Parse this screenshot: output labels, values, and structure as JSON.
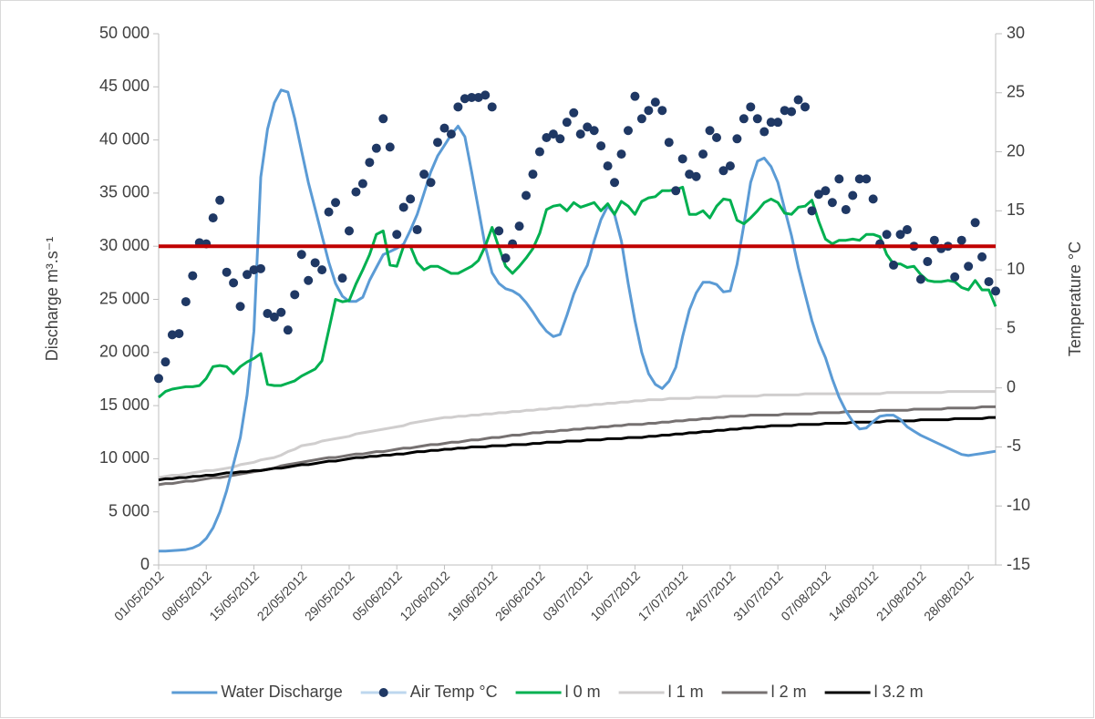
{
  "chart_data": {
    "type": "line",
    "y_label": "Discharge m³.s⁻¹",
    "y2_label": "Temperature °C",
    "categories": [
      "01/05/2012",
      null,
      null,
      null,
      null,
      null,
      null,
      "08/05/2012",
      null,
      null,
      null,
      null,
      null,
      null,
      "15/05/2012",
      null,
      null,
      null,
      null,
      null,
      null,
      "22/05/2012",
      null,
      null,
      null,
      null,
      null,
      null,
      "29/05/2012",
      null,
      null,
      null,
      null,
      null,
      null,
      "05/06/2012",
      null,
      null,
      null,
      null,
      null,
      null,
      "12/06/2012",
      null,
      null,
      null,
      null,
      null,
      null,
      "19/06/2012",
      null,
      null,
      null,
      null,
      null,
      null,
      "26/06/2012",
      null,
      null,
      null,
      null,
      null,
      null,
      "03/07/2012",
      null,
      null,
      null,
      null,
      null,
      null,
      "10/07/2012",
      null,
      null,
      null,
      null,
      null,
      null,
      "17/07/2012",
      null,
      null,
      null,
      null,
      null,
      null,
      "24/07/2012",
      null,
      null,
      null,
      null,
      null,
      null,
      "31/07/2012",
      null,
      null,
      null,
      null,
      null,
      null,
      "07/08/2012",
      null,
      null,
      null,
      null,
      null,
      null,
      "14/08/2012",
      null,
      null,
      null,
      null,
      null,
      null,
      "21/08/2012",
      null,
      null,
      null,
      null,
      null,
      null,
      "28/08/2012",
      null,
      null,
      null,
      null
    ],
    "ylim": [
      0,
      50000
    ],
    "yticks": [
      0,
      {
        "value": 5000,
        "label": "5 000"
      },
      {
        "value": 10000,
        "label": "10 000"
      },
      {
        "value": 15000,
        "label": "15 000"
      },
      {
        "value": 20000,
        "label": "20 000"
      },
      {
        "value": 25000,
        "label": "25 000"
      },
      {
        "value": 30000,
        "label": "30 000"
      },
      {
        "value": 35000,
        "label": "35 000"
      },
      {
        "value": 40000,
        "label": "40 000"
      },
      {
        "value": 45000,
        "label": "45 000"
      },
      {
        "value": 50000,
        "label": "50 000"
      }
    ],
    "y2lim": [
      -15,
      30
    ],
    "y2ticks": [
      -15,
      -10,
      -5,
      0,
      5,
      10,
      15,
      20,
      25,
      30
    ],
    "reference_line": {
      "value": 30000,
      "color": "#c00000"
    },
    "series": [
      {
        "name": "Water Discharge",
        "color": "#5b9bd5",
        "style": "line",
        "values": [
          1300,
          1300,
          1350,
          1400,
          1450,
          1600,
          1900,
          2500,
          3500,
          5000,
          7000,
          9500,
          12000,
          16000,
          22000,
          36500,
          41000,
          43500,
          44700,
          44500,
          42000,
          39000,
          36000,
          33500,
          31000,
          28500,
          26500,
          25300,
          24800,
          24800,
          25200,
          26800,
          28000,
          29200,
          29500,
          29800,
          30200,
          31500,
          33000,
          35000,
          37000,
          38500,
          39500,
          40500,
          41300,
          40300,
          37000,
          33500,
          30000,
          27500,
          26500,
          26000,
          25800,
          25400,
          24700,
          23800,
          22800,
          22000,
          21500,
          21700,
          23500,
          25500,
          27000,
          28200,
          30500,
          32500,
          33800,
          33000,
          30500,
          26500,
          23000,
          20000,
          18000,
          17000,
          16600,
          17300,
          18600,
          21500,
          24000,
          25600,
          26600,
          26600,
          26400,
          25700,
          25800,
          28300,
          32000,
          36000,
          38000,
          38300,
          37500,
          36000,
          33500,
          31000,
          28000,
          25500,
          23000,
          21000,
          19500,
          17500,
          15800,
          14500,
          13500,
          12800,
          12900,
          13500,
          14000,
          14100,
          14100,
          13700,
          13000,
          12600,
          12200,
          11900,
          11600,
          11300,
          11000,
          10700,
          10400,
          10300,
          10400,
          10500,
          10600,
          10700
        ]
      },
      {
        "name": "Air Temp °C",
        "color": "#1f3864",
        "legend_line_color": "#bdd7ee",
        "style": "markers",
        "axis": "y2",
        "values": [
          0.8,
          2.2,
          4.5,
          4.6,
          7.3,
          9.5,
          12.3,
          12.2,
          14.4,
          15.9,
          9.8,
          8.9,
          6.9,
          9.6,
          10.0,
          10.1,
          6.3,
          6.0,
          6.4,
          4.9,
          7.9,
          11.3,
          9.1,
          10.6,
          10.0,
          14.9,
          15.7,
          9.3,
          13.3,
          16.6,
          17.3,
          19.1,
          20.3,
          22.8,
          20.4,
          13.0,
          15.3,
          16.0,
          13.4,
          18.1,
          17.4,
          20.8,
          22.0,
          21.5,
          23.8,
          24.5,
          24.6,
          24.6,
          24.8,
          23.8,
          13.3,
          11.0,
          12.2,
          13.7,
          16.3,
          18.1,
          20.0,
          21.2,
          21.5,
          21.1,
          22.5,
          23.3,
          21.5,
          22.1,
          21.8,
          20.5,
          18.8,
          17.4,
          19.8,
          21.8,
          24.7,
          22.8,
          23.5,
          24.2,
          23.5,
          20.8,
          16.7,
          19.4,
          18.1,
          17.9,
          19.8,
          21.8,
          21.2,
          18.4,
          18.8,
          21.1,
          22.8,
          23.8,
          22.8,
          21.7,
          22.5,
          22.5,
          23.5,
          23.4,
          24.4,
          23.8,
          15.0,
          16.4,
          16.7,
          15.7,
          17.7,
          15.1,
          16.3,
          17.7,
          17.7,
          16.0,
          12.2,
          13.0,
          10.4,
          13.0,
          13.4,
          12.0,
          9.2,
          10.7,
          12.5,
          11.8,
          12.0,
          9.4,
          12.5,
          10.3,
          14.0,
          11.1,
          9.0,
          8.2
        ]
      },
      {
        "name": "l 0 m",
        "color": "#00b050",
        "style": "line",
        "axis": "y2",
        "values": [
          -0.8,
          -0.3,
          -0.1,
          0,
          0.1,
          0.1,
          0.2,
          0.8,
          1.8,
          1.9,
          1.8,
          1.2,
          1.8,
          2.2,
          2.5,
          2.9,
          0.3,
          0.2,
          0.2,
          0.4,
          0.6,
          1.0,
          1.3,
          1.6,
          2.3,
          4.9,
          7.5,
          7.3,
          7.4,
          8.8,
          10.0,
          11.3,
          13.0,
          13.3,
          10.4,
          10.3,
          12.0,
          12.0,
          10.6,
          10.0,
          10.3,
          10.3,
          10.0,
          9.7,
          9.7,
          10.0,
          10.3,
          10.8,
          12.0,
          13.6,
          11.9,
          10.3,
          9.7,
          10.3,
          11.0,
          11.8,
          13.1,
          15.1,
          15.4,
          15.5,
          15.0,
          15.7,
          15.3,
          15.5,
          15.7,
          15.0,
          15.6,
          14.7,
          15.8,
          15.4,
          14.7,
          15.8,
          16.1,
          16.2,
          16.7,
          16.7,
          16.8,
          17.0,
          14.7,
          14.7,
          15.0,
          14.4,
          15.4,
          16.0,
          15.9,
          14.2,
          13.9,
          14.4,
          15.0,
          15.7,
          16.0,
          15.7,
          14.8,
          14.7,
          15.3,
          15.4,
          15.9,
          14.1,
          12.6,
          12.2,
          12.5,
          12.5,
          12.6,
          12.5,
          13.0,
          13.0,
          12.8,
          11.3,
          10.5,
          10.5,
          10.2,
          10.3,
          9.6,
          9.1,
          9.0,
          9.0,
          9.1,
          9.0,
          8.5,
          8.3,
          9.1,
          8.3,
          8.3,
          6.9
        ]
      },
      {
        "name": "l 1 m",
        "color": "#d0cece",
        "style": "line",
        "axis": "y2",
        "values": [
          -7.6,
          -7.5,
          -7.4,
          -7.4,
          -7.3,
          -7.2,
          -7.1,
          -7.0,
          -7.0,
          -6.9,
          -6.8,
          -6.7,
          -6.5,
          -6.4,
          -6.3,
          -6.1,
          -6.0,
          -5.9,
          -5.7,
          -5.4,
          -5.2,
          -4.9,
          -4.8,
          -4.7,
          -4.5,
          -4.4,
          -4.3,
          -4.2,
          -4.1,
          -3.9,
          -3.8,
          -3.7,
          -3.6,
          -3.5,
          -3.4,
          -3.3,
          -3.2,
          -3.0,
          -2.9,
          -2.8,
          -2.7,
          -2.6,
          -2.5,
          -2.5,
          -2.4,
          -2.4,
          -2.3,
          -2.3,
          -2.2,
          -2.2,
          -2.1,
          -2.1,
          -2.0,
          -2.0,
          -1.9,
          -1.9,
          -1.8,
          -1.8,
          -1.7,
          -1.7,
          -1.6,
          -1.6,
          -1.5,
          -1.5,
          -1.4,
          -1.4,
          -1.3,
          -1.3,
          -1.2,
          -1.2,
          -1.1,
          -1.1,
          -1.0,
          -1.0,
          -1.0,
          -0.9,
          -0.9,
          -0.9,
          -0.9,
          -0.8,
          -0.8,
          -0.8,
          -0.8,
          -0.7,
          -0.7,
          -0.7,
          -0.7,
          -0.7,
          -0.7,
          -0.6,
          -0.6,
          -0.6,
          -0.6,
          -0.6,
          -0.6,
          -0.5,
          -0.5,
          -0.5,
          -0.5,
          -0.5,
          -0.5,
          -0.5,
          -0.5,
          -0.5,
          -0.5,
          -0.5,
          -0.5,
          -0.4,
          -0.4,
          -0.4,
          -0.4,
          -0.4,
          -0.4,
          -0.4,
          -0.4,
          -0.4,
          -0.3,
          -0.3,
          -0.3,
          -0.3,
          -0.3,
          -0.3,
          -0.3,
          -0.3
        ]
      },
      {
        "name": "l 2 m",
        "color": "#767171",
        "style": "line",
        "axis": "y2",
        "values": [
          -8.2,
          -8.1,
          -8.1,
          -8.0,
          -7.9,
          -7.9,
          -7.8,
          -7.7,
          -7.6,
          -7.6,
          -7.5,
          -7.4,
          -7.3,
          -7.2,
          -7.1,
          -7.0,
          -6.9,
          -6.8,
          -6.6,
          -6.5,
          -6.4,
          -6.3,
          -6.2,
          -6.1,
          -6.0,
          -5.9,
          -5.9,
          -5.8,
          -5.7,
          -5.6,
          -5.6,
          -5.5,
          -5.4,
          -5.4,
          -5.3,
          -5.2,
          -5.1,
          -5.1,
          -5.0,
          -4.9,
          -4.8,
          -4.8,
          -4.7,
          -4.6,
          -4.6,
          -4.5,
          -4.4,
          -4.4,
          -4.3,
          -4.2,
          -4.2,
          -4.1,
          -4.0,
          -4.0,
          -3.9,
          -3.8,
          -3.8,
          -3.7,
          -3.7,
          -3.6,
          -3.6,
          -3.5,
          -3.5,
          -3.4,
          -3.4,
          -3.3,
          -3.3,
          -3.2,
          -3.2,
          -3.1,
          -3.1,
          -3.1,
          -3.0,
          -3.0,
          -2.9,
          -2.9,
          -2.8,
          -2.8,
          -2.7,
          -2.7,
          -2.6,
          -2.6,
          -2.5,
          -2.5,
          -2.4,
          -2.4,
          -2.4,
          -2.3,
          -2.3,
          -2.3,
          -2.3,
          -2.3,
          -2.2,
          -2.2,
          -2.2,
          -2.2,
          -2.2,
          -2.1,
          -2.1,
          -2.1,
          -2.1,
          -2.0,
          -2.0,
          -2.0,
          -2.0,
          -2.0,
          -1.9,
          -1.9,
          -1.9,
          -1.9,
          -1.9,
          -1.8,
          -1.8,
          -1.8,
          -1.8,
          -1.8,
          -1.7,
          -1.7,
          -1.7,
          -1.7,
          -1.7,
          -1.6,
          -1.6,
          -1.6
        ]
      },
      {
        "name": "l 3.2 m",
        "color": "#000000",
        "style": "line",
        "axis": "y2",
        "values": [
          -7.8,
          -7.7,
          -7.7,
          -7.6,
          -7.6,
          -7.5,
          -7.5,
          -7.4,
          -7.4,
          -7.3,
          -7.2,
          -7.2,
          -7.1,
          -7.1,
          -7.0,
          -7.0,
          -6.9,
          -6.8,
          -6.8,
          -6.7,
          -6.6,
          -6.5,
          -6.5,
          -6.4,
          -6.3,
          -6.2,
          -6.2,
          -6.1,
          -6.0,
          -5.9,
          -5.9,
          -5.8,
          -5.8,
          -5.7,
          -5.7,
          -5.6,
          -5.6,
          -5.5,
          -5.4,
          -5.4,
          -5.3,
          -5.3,
          -5.2,
          -5.2,
          -5.1,
          -5.1,
          -5.0,
          -5.0,
          -5.0,
          -4.9,
          -4.9,
          -4.9,
          -4.8,
          -4.8,
          -4.8,
          -4.7,
          -4.7,
          -4.6,
          -4.6,
          -4.6,
          -4.5,
          -4.5,
          -4.5,
          -4.4,
          -4.4,
          -4.4,
          -4.3,
          -4.3,
          -4.3,
          -4.2,
          -4.2,
          -4.2,
          -4.1,
          -4.1,
          -4.0,
          -4.0,
          -3.9,
          -3.9,
          -3.8,
          -3.8,
          -3.7,
          -3.7,
          -3.6,
          -3.6,
          -3.5,
          -3.5,
          -3.4,
          -3.4,
          -3.3,
          -3.3,
          -3.2,
          -3.2,
          -3.2,
          -3.2,
          -3.1,
          -3.1,
          -3.1,
          -3.1,
          -3.0,
          -3.0,
          -3.0,
          -3.0,
          -2.9,
          -2.9,
          -2.9,
          -2.9,
          -2.9,
          -2.8,
          -2.8,
          -2.8,
          -2.8,
          -2.8,
          -2.7,
          -2.7,
          -2.7,
          -2.7,
          -2.7,
          -2.6,
          -2.6,
          -2.6,
          -2.6,
          -2.6,
          -2.5,
          -2.5
        ]
      }
    ]
  }
}
